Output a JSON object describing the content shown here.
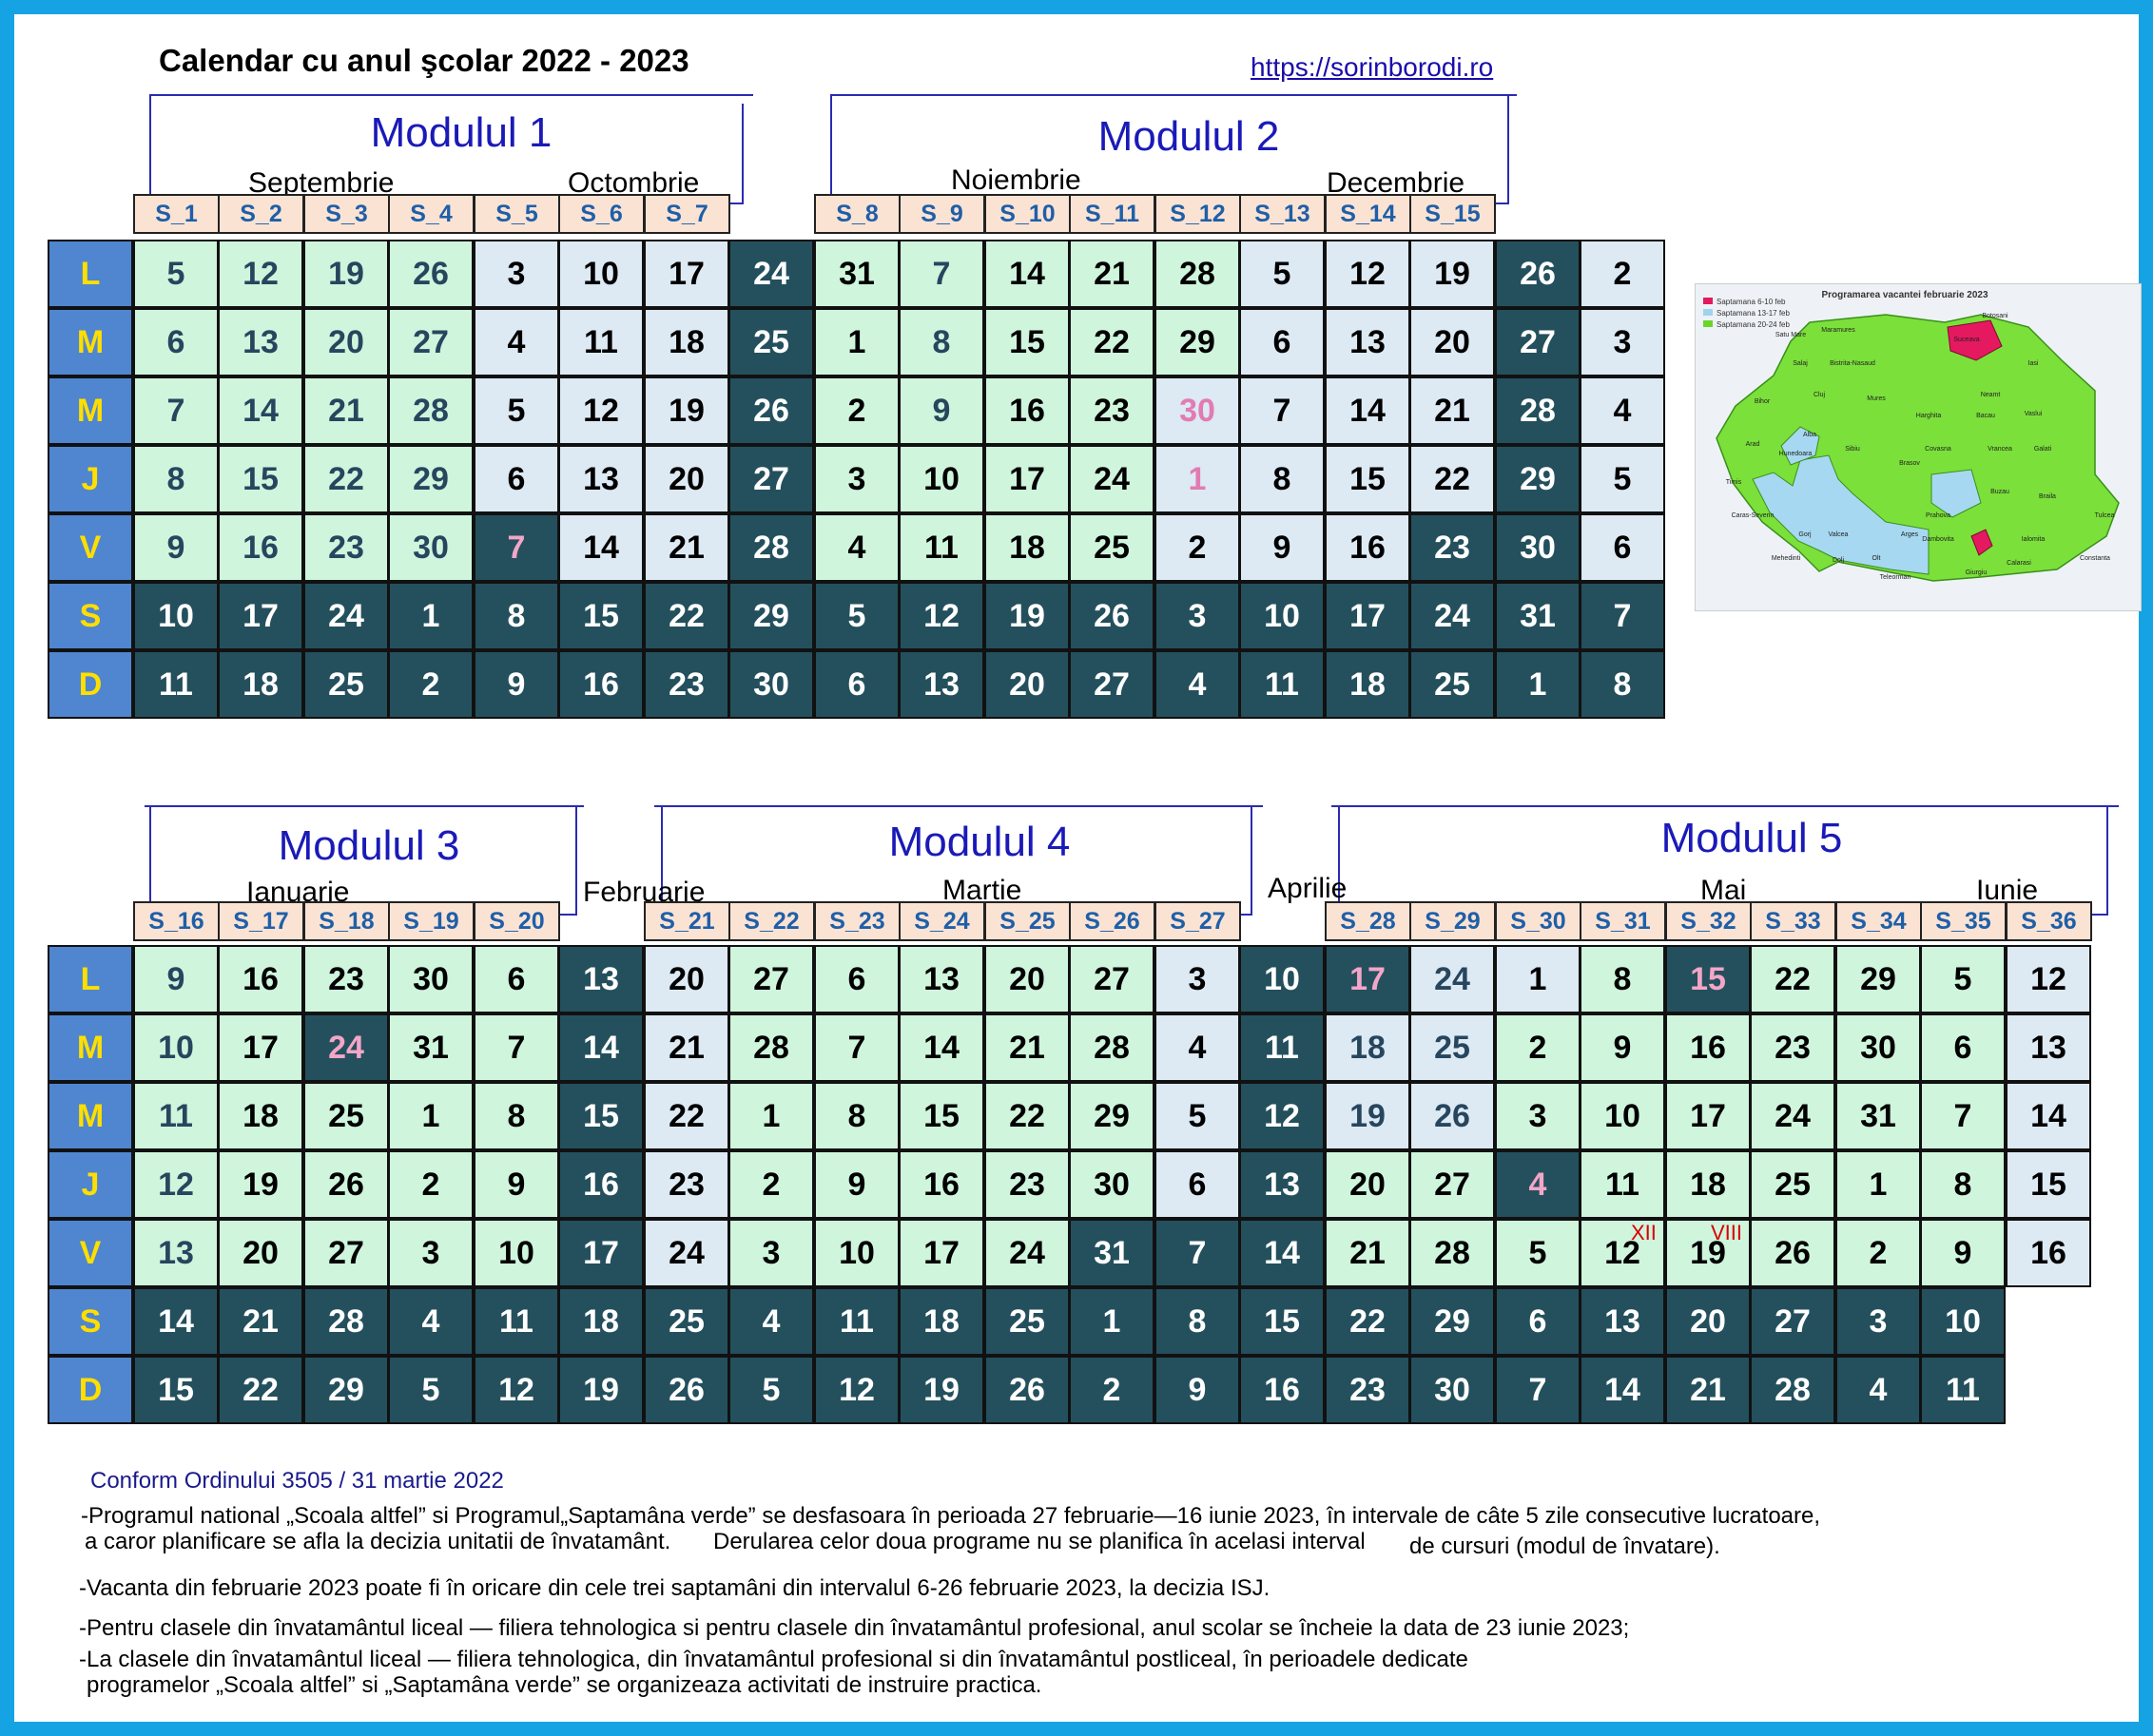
{
  "title": "Calendar cu anul şcolar 2022 - 2023",
  "url": "https://sorinborodi.ro",
  "modules": [
    "Modulul 1",
    "Modulul 2",
    "Modulul 3",
    "Modulul 4",
    "Modulul 5"
  ],
  "months": [
    "Septembrie",
    "Octombrie",
    "Noiembrie",
    "Decembrie",
    "Ianuarie",
    "Februarie",
    "Martie",
    "Aprilie",
    "Mai",
    "Iunie"
  ],
  "day_names": [
    "L",
    "M",
    "M",
    "J",
    "V",
    "S",
    "D"
  ],
  "weeks_top": [
    "S_1",
    "S_2",
    "S_3",
    "S_4",
    "S_5",
    "S_6",
    "S_7",
    "S_8",
    "S_9",
    "S_10",
    "S_11",
    "S_12",
    "S_13",
    "S_14",
    "S_15"
  ],
  "weeks_bottom": [
    "S_16",
    "S_17",
    "S_18",
    "S_19",
    "S_20",
    "S_21",
    "S_22",
    "S_23",
    "S_24",
    "S_25",
    "S_26",
    "S_27",
    "S_28",
    "S_29",
    "S_30",
    "S_31",
    "S_32",
    "S_33",
    "S_34",
    "S_35",
    "S_36"
  ],
  "top_columns": [
    [
      "5",
      "6",
      "7",
      "8",
      "9",
      "10",
      "11"
    ],
    [
      "12",
      "13",
      "14",
      "15",
      "16",
      "17",
      "18"
    ],
    [
      "19",
      "20",
      "21",
      "22",
      "23",
      "24",
      "25"
    ],
    [
      "26",
      "27",
      "28",
      "29",
      "30",
      "1",
      "2"
    ],
    [
      "3",
      "4",
      "5",
      "6",
      "7",
      "8",
      "9"
    ],
    [
      "10",
      "11",
      "12",
      "13",
      "14",
      "15",
      "16"
    ],
    [
      "17",
      "18",
      "19",
      "20",
      "21",
      "22",
      "23"
    ],
    [
      "24",
      "25",
      "26",
      "27",
      "28",
      "29",
      "30"
    ],
    [
      "31",
      "1",
      "2",
      "3",
      "4",
      "5",
      "6"
    ],
    [
      "7",
      "8",
      "9",
      "10",
      "11",
      "12",
      "13"
    ],
    [
      "14",
      "15",
      "16",
      "17",
      "18",
      "19",
      "20"
    ],
    [
      "21",
      "22",
      "23",
      "24",
      "25",
      "26",
      "27"
    ],
    [
      "28",
      "29",
      "30",
      "1",
      "2",
      "3",
      "4"
    ],
    [
      "5",
      "6",
      "7",
      "8",
      "9",
      "10",
      "11"
    ],
    [
      "12",
      "13",
      "14",
      "15",
      "16",
      "17",
      "18"
    ],
    [
      "19",
      "20",
      "21",
      "22",
      "23",
      "24",
      "25"
    ],
    [
      "26",
      "27",
      "28",
      "29",
      "30",
      "31",
      "1"
    ],
    [
      "2",
      "3",
      "4",
      "5",
      "6",
      "7",
      "8"
    ]
  ],
  "bottom_columns": [
    [
      "9",
      "10",
      "11",
      "12",
      "13",
      "14",
      "15"
    ],
    [
      "16",
      "17",
      "18",
      "19",
      "20",
      "21",
      "22"
    ],
    [
      "23",
      "24",
      "25",
      "26",
      "27",
      "28",
      "29"
    ],
    [
      "30",
      "31",
      "1",
      "2",
      "3",
      "4",
      "5"
    ],
    [
      "6",
      "7",
      "8",
      "9",
      "10",
      "11",
      "12"
    ],
    [
      "13",
      "14",
      "15",
      "16",
      "17",
      "18",
      "19"
    ],
    [
      "20",
      "21",
      "22",
      "23",
      "24",
      "25",
      "26"
    ],
    [
      "27",
      "28",
      "1",
      "2",
      "3",
      "4",
      "5"
    ],
    [
      "6",
      "7",
      "8",
      "9",
      "10",
      "11",
      "12"
    ],
    [
      "13",
      "14",
      "15",
      "16",
      "17",
      "18",
      "19"
    ],
    [
      "20",
      "21",
      "22",
      "23",
      "24",
      "25",
      "26"
    ],
    [
      "27",
      "28",
      "29",
      "30",
      "31",
      "1",
      "2"
    ],
    [
      "3",
      "4",
      "5",
      "6",
      "7",
      "8",
      "9"
    ],
    [
      "10",
      "11",
      "12",
      "13",
      "14",
      "15",
      "16"
    ],
    [
      "17",
      "18",
      "19",
      "20",
      "21",
      "22",
      "23"
    ],
    [
      "24",
      "25",
      "26",
      "27",
      "28",
      "29",
      "30"
    ],
    [
      "1",
      "2",
      "3",
      "4",
      "5",
      "6",
      "7"
    ],
    [
      "8",
      "9",
      "10",
      "11",
      "12",
      "13",
      "14"
    ],
    [
      "15",
      "16",
      "17",
      "18",
      "19",
      "20",
      "21"
    ],
    [
      "22",
      "23",
      "24",
      "25",
      "26",
      "27",
      "28"
    ],
    [
      "29",
      "30",
      "31",
      "1",
      "2",
      "3",
      "4"
    ],
    [
      "5",
      "6",
      "7",
      "8",
      "9",
      "10",
      "11"
    ],
    [
      "12",
      "13",
      "14",
      "15",
      "16"
    ]
  ],
  "superscripts": [
    "XII",
    "VIII"
  ],
  "map": {
    "title": "Programarea vacantei februarie 2023",
    "legend": [
      "Saptamana 6-10 feb",
      "Saptamana 13-17 feb",
      "Saptamana 20-24 feb"
    ],
    "legend_colors": [
      "#e5195f",
      "#9fd3ee",
      "#6ad62a"
    ],
    "counties": [
      "Satu Mare",
      "Maramures",
      "Suceava",
      "Botosani",
      "Salaj",
      "Bistrita-Nasaud",
      "Iasi",
      "Bihor",
      "Cluj",
      "Mures",
      "Neamt",
      "Harghita",
      "Bacau",
      "Vaslui",
      "Arad",
      "Alba",
      "Sibiu",
      "Covasna",
      "Vrancea",
      "Galati",
      "Hunedoara",
      "Timis",
      "Brasov",
      "Buzau",
      "Braila",
      "Caras-Severin",
      "Gorj",
      "Valcea",
      "Arges",
      "Prahova",
      "Tulcea",
      "Mehedinti",
      "Dolj",
      "Olt",
      "Dambovita",
      "Ialomita",
      "Calarasi",
      "Constanta",
      "Teleorman",
      "Giurgiu"
    ]
  },
  "conform": "Conform Ordinului 3505 / 31 martie 2022",
  "notes": [
    "-Programul national „Scoala altfel” si Programul„Saptamâna verde” se desfasoara în perioada 27 februarie—16 iunie 2023, în intervale de câte 5 zile consecutive lucratoare,",
    "a caror planificare se afla la decizia unitatii de învatamânt.",
    "Derularea celor doua programe nu se planifica în acelasi interval",
    "de cursuri (modul de învatare).",
    "-Vacanta din februarie 2023 poate fi în oricare din cele trei saptamâni din intervalul 6-26 februarie 2023, la decizia ISJ.",
    "-Pentru clasele din învatamântul liceal — filiera tehnologica si pentru clasele din învatamântul profesional, anul scolar se încheie la data de 23 iunie 2023;",
    "-La clasele din învatamântul liceal — filiera tehnologica, din învatamântul profesional si din învatamântul postliceal, în perioadele dedicate",
    "programelor „Scoala altfel” si „Saptamâna verde” se organizeaza activitati de instruire practica."
  ]
}
